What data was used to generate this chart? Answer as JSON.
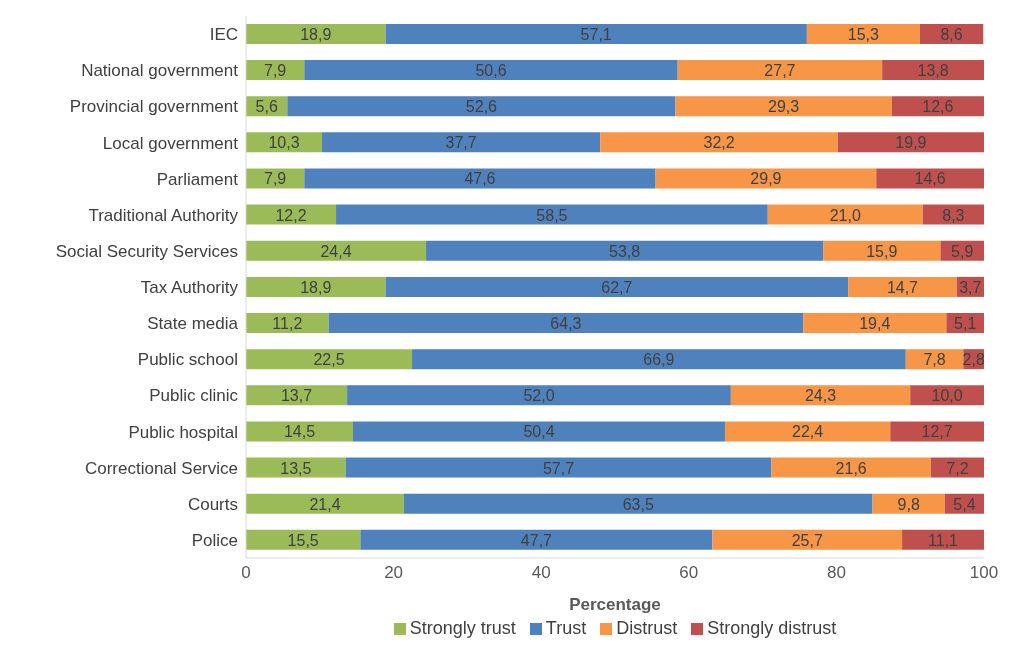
{
  "chart_data": {
    "type": "bar",
    "orientation": "horizontal",
    "stacked": true,
    "xlabel": "Percentage",
    "xlim": [
      0,
      100
    ],
    "xticks": [
      0,
      20,
      40,
      60,
      80,
      100
    ],
    "grid": false,
    "legend": "bottom",
    "categories": [
      "IEC",
      "National government",
      "Provincial government",
      "Local government",
      "Parliament",
      "Traditional Authority",
      "Social Security Services",
      "Tax Authority",
      "State media",
      "Public school",
      "Public clinic",
      "Public hospital",
      "Correctional Service",
      "Courts",
      "Police"
    ],
    "series": [
      {
        "name": "Strongly trust",
        "color": "#9bbb59",
        "values": [
          18.9,
          7.9,
          5.6,
          10.3,
          7.9,
          12.2,
          24.4,
          18.9,
          11.2,
          22.5,
          13.7,
          14.5,
          13.5,
          21.4,
          15.5
        ],
        "value_labels": [
          "18,9",
          "7,9",
          "5,6",
          "10,3",
          "7,9",
          "12,2",
          "24,4",
          "18,9",
          "11,2",
          "22,5",
          "13,7",
          "14,5",
          "13,5",
          "21,4",
          "15,5"
        ]
      },
      {
        "name": "Trust",
        "color": "#4f81bd",
        "values": [
          57.1,
          50.6,
          52.6,
          37.7,
          47.6,
          58.5,
          53.8,
          62.7,
          64.3,
          66.9,
          52.0,
          50.4,
          57.7,
          63.5,
          47.7
        ],
        "value_labels": [
          "57,1",
          "50,6",
          "52,6",
          "37,7",
          "47,6",
          "58,5",
          "53,8",
          "62,7",
          "64,3",
          "66,9",
          "52,0",
          "50,4",
          "57,7",
          "63,5",
          "47,7"
        ]
      },
      {
        "name": "Distrust",
        "color": "#f79646",
        "values": [
          15.3,
          27.7,
          29.3,
          32.2,
          29.9,
          21.0,
          15.9,
          14.7,
          19.4,
          7.8,
          24.3,
          22.4,
          21.6,
          9.8,
          25.7
        ],
        "value_labels": [
          "15,3",
          "27,7",
          "29,3",
          "32,2",
          "29,9",
          "21,0",
          "15,9",
          "14,7",
          "19,4",
          "7,8",
          "24,3",
          "22,4",
          "21,6",
          "9,8",
          "25,7"
        ]
      },
      {
        "name": "Strongly distrust",
        "color": "#c0504d",
        "values": [
          8.6,
          13.8,
          12.6,
          19.9,
          14.6,
          8.3,
          5.9,
          3.7,
          5.1,
          2.8,
          10.0,
          12.7,
          7.2,
          5.4,
          11.1
        ],
        "value_labels": [
          "8,6",
          "13,8",
          "12,6",
          "19,9",
          "14,6",
          "8,3",
          "5,9",
          "3,7",
          "5,1",
          "2,8",
          "10,0",
          "12,7",
          "7,2",
          "5,4",
          "11,1"
        ]
      }
    ]
  }
}
